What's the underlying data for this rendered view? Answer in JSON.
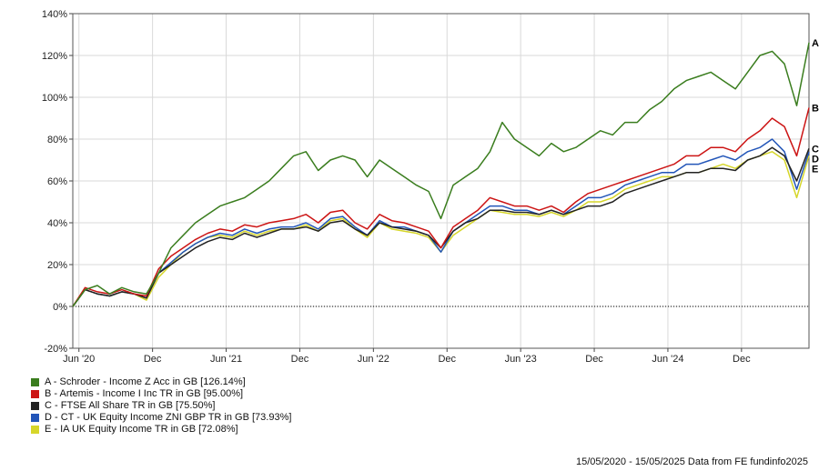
{
  "chart_data": {
    "type": "line",
    "y_ticks": [
      "140%",
      "120%",
      "100%",
      "80%",
      "60%",
      "40%",
      "20%",
      "0%",
      "-20%"
    ],
    "x_ticks": [
      "Jun '20",
      "Dec",
      "Jun '21",
      "Dec",
      "Jun '22",
      "Dec",
      "Jun '23",
      "Dec",
      "Jun '24",
      "Dec"
    ],
    "x_tick_positions": [
      0.5,
      6.5,
      12.5,
      18.5,
      24.5,
      30.5,
      36.5,
      42.5,
      48.5,
      54.5
    ],
    "xlim": [
      0,
      60
    ],
    "ylim": [
      -20,
      140
    ],
    "grid": true,
    "series": [
      {
        "name": "A - Schroder - Income Z Acc in GB [126.14%]",
        "end_label": "A",
        "color": "#3a7d1e",
        "values": [
          0,
          8,
          10,
          6,
          9,
          7,
          6,
          16,
          28,
          34,
          40,
          44,
          48,
          50,
          52,
          56,
          60,
          66,
          72,
          74,
          65,
          70,
          72,
          70,
          62,
          70,
          66,
          62,
          58,
          55,
          42,
          58,
          62,
          66,
          74,
          88,
          80,
          76,
          72,
          78,
          74,
          76,
          80,
          84,
          82,
          88,
          88,
          94,
          98,
          104,
          108,
          110,
          112,
          108,
          104,
          112,
          120,
          122,
          116,
          96,
          126.14
        ]
      },
      {
        "name": "B - Artemis - Income I Inc TR in GB [95.00%]",
        "end_label": "B",
        "color": "#cc1414",
        "values": [
          0,
          9,
          7,
          6,
          8,
          6,
          5,
          18,
          24,
          28,
          32,
          35,
          37,
          36,
          39,
          38,
          40,
          41,
          42,
          44,
          40,
          45,
          46,
          40,
          37,
          44,
          41,
          40,
          38,
          36,
          28,
          38,
          42,
          46,
          52,
          50,
          48,
          48,
          46,
          48,
          45,
          50,
          54,
          56,
          58,
          60,
          62,
          64,
          66,
          68,
          72,
          72,
          76,
          76,
          74,
          80,
          84,
          90,
          86,
          72,
          95.0
        ]
      },
      {
        "name": "C - FTSE All Share TR in GB [75.50%]",
        "end_label": "C",
        "color": "#222222",
        "values": [
          0,
          8,
          6,
          5,
          7,
          6,
          4,
          16,
          20,
          24,
          28,
          31,
          33,
          32,
          35,
          33,
          35,
          37,
          37,
          38,
          36,
          40,
          41,
          37,
          34,
          40,
          38,
          37,
          36,
          34,
          28,
          36,
          40,
          42,
          46,
          46,
          45,
          45,
          44,
          46,
          44,
          46,
          48,
          48,
          50,
          54,
          56,
          58,
          60,
          62,
          64,
          64,
          66,
          66,
          65,
          70,
          72,
          76,
          72,
          60,
          75.5
        ]
      },
      {
        "name": "D - CT - UK Equity Income ZNI GBP TR in GB [73.93%]",
        "end_label": "D",
        "color": "#2255b8",
        "values": [
          0,
          8,
          6,
          5,
          7,
          6,
          4,
          16,
          21,
          26,
          30,
          33,
          35,
          34,
          37,
          35,
          37,
          38,
          38,
          40,
          37,
          42,
          43,
          38,
          34,
          41,
          38,
          38,
          36,
          34,
          26,
          36,
          40,
          44,
          48,
          48,
          46,
          46,
          44,
          46,
          44,
          48,
          52,
          52,
          54,
          58,
          60,
          62,
          64,
          64,
          68,
          68,
          70,
          72,
          70,
          74,
          76,
          80,
          74,
          56,
          73.93
        ]
      },
      {
        "name": "E - IA UK Equity Income TR in GB [72.08%]",
        "end_label": "E",
        "color": "#d6d62a",
        "values": [
          0,
          8,
          6,
          5,
          7,
          6,
          3,
          14,
          20,
          26,
          30,
          33,
          34,
          33,
          36,
          34,
          36,
          37,
          37,
          39,
          36,
          41,
          42,
          37,
          33,
          40,
          37,
          36,
          35,
          33,
          26,
          34,
          38,
          42,
          46,
          45,
          44,
          44,
          43,
          45,
          43,
          46,
          50,
          50,
          52,
          56,
          58,
          60,
          62,
          62,
          64,
          64,
          66,
          68,
          66,
          70,
          72,
          74,
          70,
          52,
          72.08
        ]
      }
    ]
  },
  "footer": "15/05/2020 - 15/05/2025 Data from FE fundinfo2025"
}
